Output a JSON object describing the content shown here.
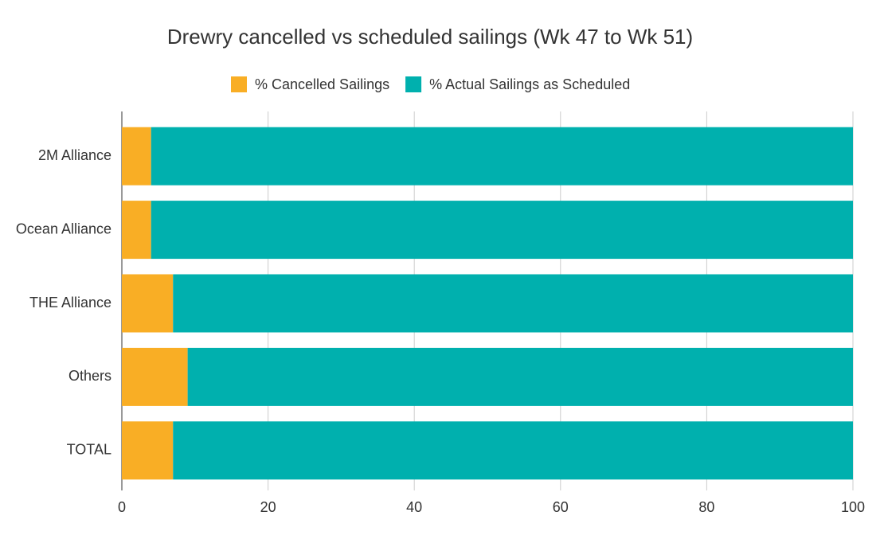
{
  "chart_data": {
    "type": "bar",
    "orientation": "horizontal",
    "stacked": true,
    "title": "Drewry cancelled vs scheduled sailings (Wk 47 to Wk 51)",
    "categories": [
      "2M Alliance",
      "Ocean Alliance",
      "THE Alliance",
      "Others",
      "TOTAL"
    ],
    "series": [
      {
        "name": "% Cancelled Sailings",
        "color": "#f9ae25",
        "values": [
          4,
          4,
          7,
          9,
          7
        ]
      },
      {
        "name": "% Actual Sailings as Scheduled",
        "color": "#00b0ae",
        "values": [
          96,
          96,
          93,
          91,
          93
        ]
      }
    ],
    "xlim": [
      0,
      100
    ],
    "xticks": [
      0,
      20,
      40,
      60,
      80,
      100
    ],
    "grid": true,
    "legend": "top"
  }
}
